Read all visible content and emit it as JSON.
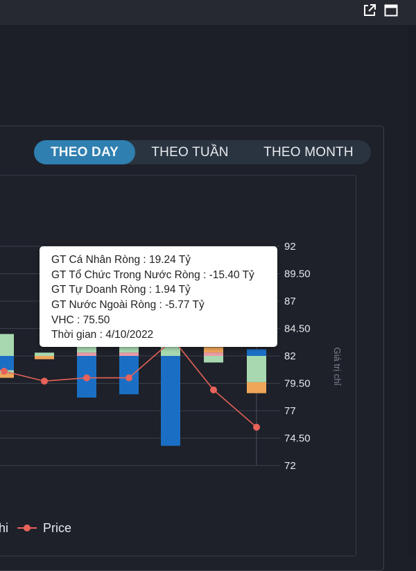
{
  "tabs": [
    {
      "label": "THEO DAY",
      "active": true
    },
    {
      "label": "THEO TUẦN",
      "active": false
    },
    {
      "label": "THEO MONTH",
      "active": false
    }
  ],
  "icons": [
    "open-external-icon",
    "maximize-icon"
  ],
  "tooltip": {
    "lines": [
      "GT Cá Nhân Ròng  : 19.24 Tỷ",
      "GT Tổ Chức Trong Nước Ròng : -15.40 Tỷ",
      "GT Tự Doanh Ròng : 1.94 Tỷ",
      "GT Nước Ngoài Ròng : -5.77 Tỷ",
      "VHC : 75.50",
      "Thời gian : 4/10/2022"
    ]
  },
  "legend": {
    "partial_label": "hi",
    "price_label": "Price"
  },
  "colors": {
    "ca_nhan": "#a8d8b0",
    "to_chuc": "#1a6fc4",
    "tu_doanh": "#f0a65a",
    "tu_doanh_pink": "#e89aa8",
    "price": "#e8625a",
    "grid": "#3b404a"
  },
  "chart_data": {
    "type": "bar",
    "right_axis": {
      "label": "Giá trị chỉ",
      "ticks": [
        "92",
        "89.50",
        "87",
        "84.50",
        "82",
        "79.50",
        "77",
        "74.50",
        "72"
      ],
      "ylim": [
        72,
        92
      ]
    },
    "price_series": {
      "name": "Price",
      "points": [
        {
          "i": 0,
          "v": 80.6
        },
        {
          "i": 1,
          "v": 79.7
        },
        {
          "i": 2,
          "v": 80.0
        },
        {
          "i": 3,
          "v": 80.0
        },
        {
          "i": 4,
          "v": 83.3
        },
        {
          "i": 5,
          "v": 83.8
        },
        {
          "i": 6,
          "v": 78.9
        },
        {
          "i": 7,
          "v": 75.5
        }
      ]
    },
    "bars": [
      {
        "i": 0,
        "segments": [
          {
            "kind": "ca_nhan",
            "from": 82.0,
            "to": 84.0
          },
          {
            "kind": "to_chuc",
            "from": 82.0,
            "to": 80.7
          },
          {
            "kind": "ca_nhan",
            "from": 80.7,
            "to": 80.4
          },
          {
            "kind": "tu_doanh",
            "from": 80.4,
            "to": 80.0
          }
        ]
      },
      {
        "i": 1,
        "segments": [
          {
            "kind": "ca_nhan",
            "from": 82.0,
            "to": 82.3
          },
          {
            "kind": "tu_doanh",
            "from": 82.0,
            "to": 81.7
          }
        ]
      },
      {
        "i": 2,
        "segments": [
          {
            "kind": "ca_nhan",
            "from": 82.3,
            "to": 83.5
          },
          {
            "kind": "tu_doanh_pink",
            "from": 82.0,
            "to": 82.3
          },
          {
            "kind": "to_chuc",
            "from": 82.0,
            "to": 78.2
          }
        ]
      },
      {
        "i": 3,
        "segments": [
          {
            "kind": "ca_nhan",
            "from": 82.3,
            "to": 83.5
          },
          {
            "kind": "tu_doanh_pink",
            "from": 82.0,
            "to": 82.3
          },
          {
            "kind": "to_chuc",
            "from": 82.0,
            "to": 78.5
          }
        ]
      },
      {
        "i": 4,
        "segments": [
          {
            "kind": "ca_nhan",
            "from": 82.0,
            "to": 83.5
          }
        ]
      },
      {
        "i": 5,
        "segments": [
          {
            "kind": "ca_nhan",
            "from": 82.0,
            "to": 83.5
          },
          {
            "kind": "to_chuc",
            "from": 82.0,
            "to": 73.8
          }
        ]
      },
      {
        "i": 6,
        "segments": [
          {
            "kind": "tu_doanh",
            "from": 82.3,
            "to": 82.8
          },
          {
            "kind": "tu_doanh_pink",
            "from": 82.0,
            "to": 82.3
          },
          {
            "kind": "ca_nhan",
            "from": 82.0,
            "to": 81.4
          }
        ]
      },
      {
        "i": 7,
        "segments": [
          {
            "kind": "to_chuc",
            "from": 82.0,
            "to": 82.6
          },
          {
            "kind": "ca_nhan",
            "from": 82.0,
            "to": 79.6
          },
          {
            "kind": "tu_doanh",
            "from": 79.6,
            "to": 78.6
          }
        ]
      }
    ]
  }
}
